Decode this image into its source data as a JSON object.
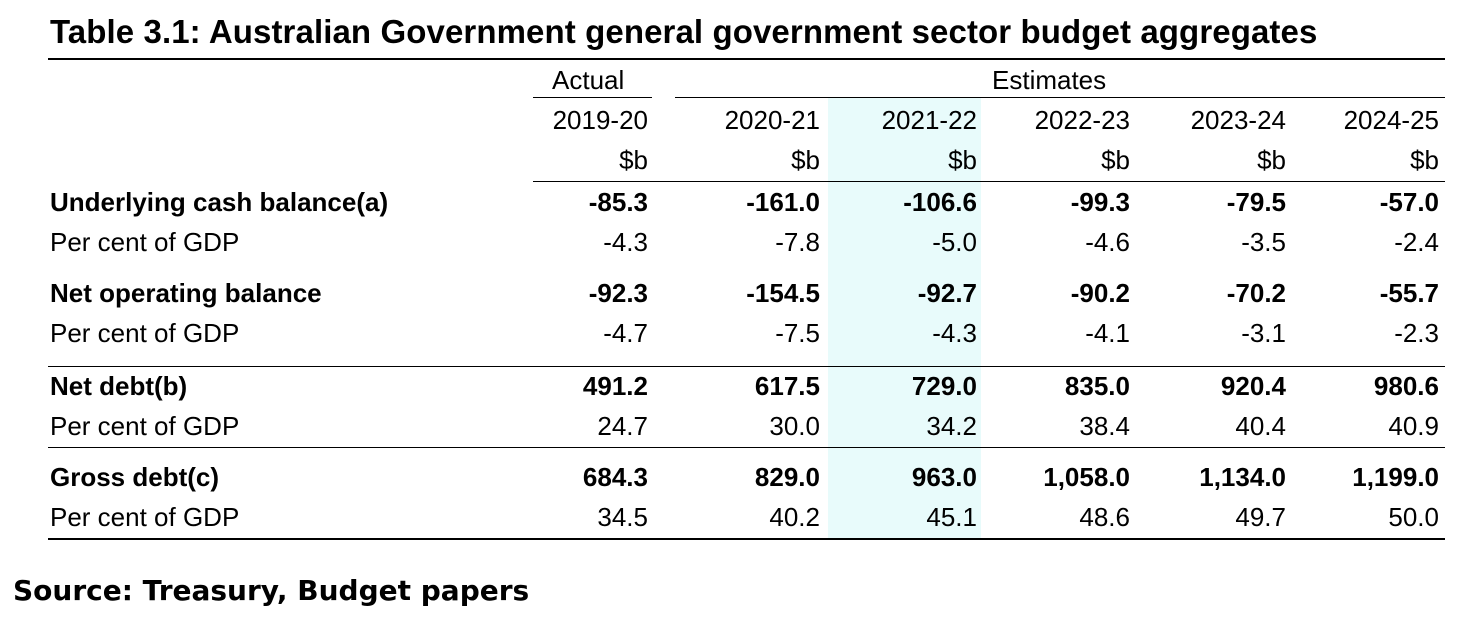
{
  "title": "Table 3.1: Australian Government general government sector budget aggregates",
  "header": {
    "actual_label": "Actual",
    "estimates_label": "Estimates",
    "years": [
      "2019-20",
      "2020-21",
      "2021-22",
      "2022-23",
      "2023-24",
      "2024-25"
    ],
    "unit": "$b"
  },
  "rows": [
    {
      "label": "Underlying cash balance(a)",
      "bold": true,
      "values": [
        "-85.3",
        "-161.0",
        "-106.6",
        "-99.3",
        "-79.5",
        "-57.0"
      ]
    },
    {
      "label": "Per cent of GDP",
      "bold": false,
      "values": [
        "-4.3",
        "-7.8",
        "-5.0",
        "-4.6",
        "-3.5",
        "-2.4"
      ]
    },
    {
      "label": "Net operating balance",
      "bold": true,
      "values": [
        "-92.3",
        "-154.5",
        "-92.7",
        "-90.2",
        "-70.2",
        "-55.7"
      ]
    },
    {
      "label": "Per cent of GDP",
      "bold": false,
      "values": [
        "-4.7",
        "-7.5",
        "-4.3",
        "-4.1",
        "-3.1",
        "-2.3"
      ]
    },
    {
      "label": "Net debt(b)",
      "bold": true,
      "values": [
        "491.2",
        "617.5",
        "729.0",
        "835.0",
        "920.4",
        "980.6"
      ]
    },
    {
      "label": "Per cent of GDP",
      "bold": false,
      "values": [
        "24.7",
        "30.0",
        "34.2",
        "38.4",
        "40.4",
        "40.9"
      ]
    },
    {
      "label": "Gross debt(c)",
      "bold": true,
      "values": [
        "684.3",
        "829.0",
        "963.0",
        "1,058.0",
        "1,134.0",
        "1,199.0"
      ]
    },
    {
      "label": "Per cent of GDP",
      "bold": false,
      "values": [
        "34.5",
        "40.2",
        "45.1",
        "48.6",
        "49.7",
        "50.0"
      ]
    }
  ],
  "source": "Source: Treasury, Budget papers"
}
